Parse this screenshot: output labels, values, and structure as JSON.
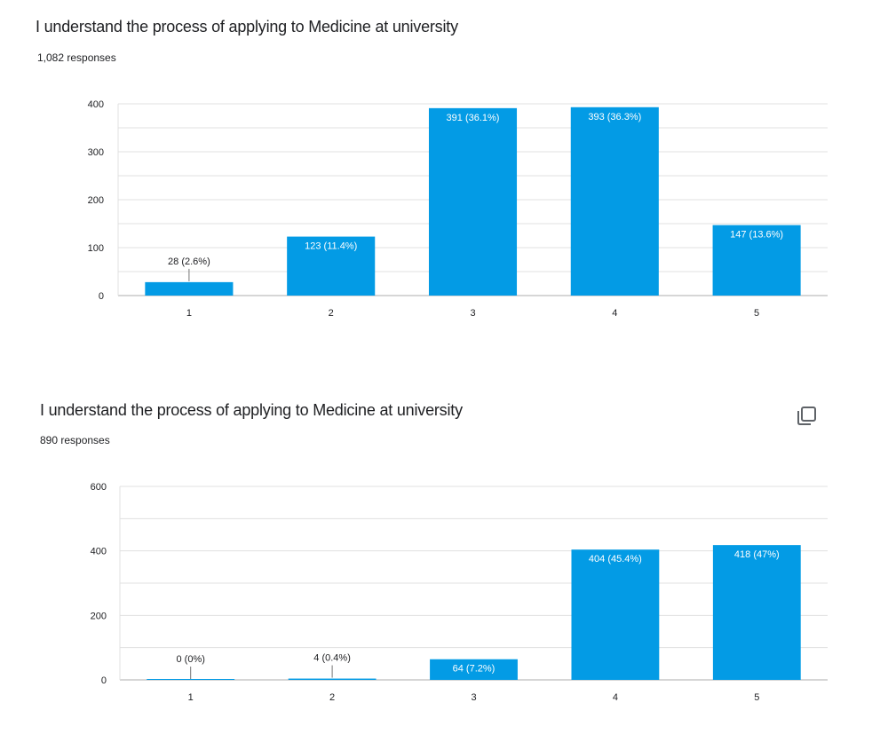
{
  "colors": {
    "bar": "#039be5",
    "gridline": "#e0e0e0",
    "baseline": "#bdbdbd"
  },
  "charts": [
    {
      "title": "I understand the process of applying to Medicine at university",
      "responses": "1,082 responses",
      "copy_icon": "copy-icon"
    },
    {
      "title": "I understand the process of applying to Medicine at university",
      "responses": "890 responses",
      "copy_icon": "copy-icon"
    }
  ],
  "chart_data": [
    {
      "type": "bar",
      "title": "I understand the process of applying to Medicine at university",
      "subtitle": "1,082 responses",
      "categories": [
        "1",
        "2",
        "3",
        "4",
        "5"
      ],
      "values": [
        28,
        123,
        391,
        393,
        147
      ],
      "labels": [
        "28 (2.6%)",
        "123 (11.4%)",
        "391 (36.1%)",
        "393 (36.3%)",
        "147 (13.6%)"
      ],
      "yticks": [
        0,
        100,
        200,
        300,
        400
      ],
      "ylim": [
        0,
        400
      ],
      "xlabel": "",
      "ylabel": "",
      "grid": true,
      "legend": "none"
    },
    {
      "type": "bar",
      "title": "I understand the process of applying to Medicine at university",
      "subtitle": "890 responses",
      "categories": [
        "1",
        "2",
        "3",
        "4",
        "5"
      ],
      "values": [
        0,
        4,
        64,
        404,
        418
      ],
      "labels": [
        "0 (0%)",
        "4 (0.4%)",
        "64 (7.2%)",
        "404 (45.4%)",
        "418 (47%)"
      ],
      "yticks": [
        0,
        200,
        400,
        600
      ],
      "ylim": [
        0,
        600
      ],
      "xlabel": "",
      "ylabel": "",
      "grid": true,
      "legend": "none"
    }
  ]
}
